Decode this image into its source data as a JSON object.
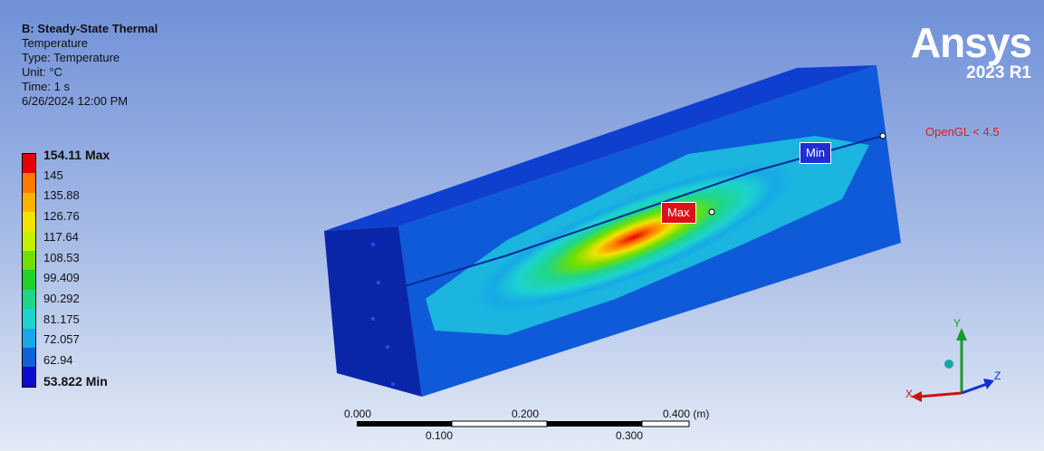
{
  "info": {
    "title": "B: Steady-State Thermal",
    "result": "Temperature",
    "type": "Type: Temperature",
    "unit": "Unit: °C",
    "time": "Time: 1 s",
    "date": "6/26/2024 12:00 PM"
  },
  "legend": {
    "labels": [
      "154.11 Max",
      "145",
      "135.88",
      "126.76",
      "117.64",
      "108.53",
      "99.409",
      "90.292",
      "81.175",
      "72.057",
      "62.94",
      "53.822 Min"
    ],
    "colors": [
      "#e60000",
      "#ff7a00",
      "#ffb300",
      "#f2e200",
      "#c4ef00",
      "#6fe000",
      "#22d12a",
      "#1ed68a",
      "#1dd3cf",
      "#17a9e6",
      "#0f62d6",
      "#0c0bcf"
    ]
  },
  "logo": {
    "brand": "Ansys",
    "version": "2023 R1"
  },
  "opengl": "OpenGL < 4.5",
  "probes": {
    "min": "Min",
    "max": "Max"
  },
  "scale": {
    "top_ticks": [
      "0.000",
      "0.200",
      "0.400 (m)"
    ],
    "bottom_ticks": [
      "0.100",
      "0.300"
    ]
  },
  "triad": {
    "x": "X",
    "y": "Y",
    "z": "Z"
  }
}
